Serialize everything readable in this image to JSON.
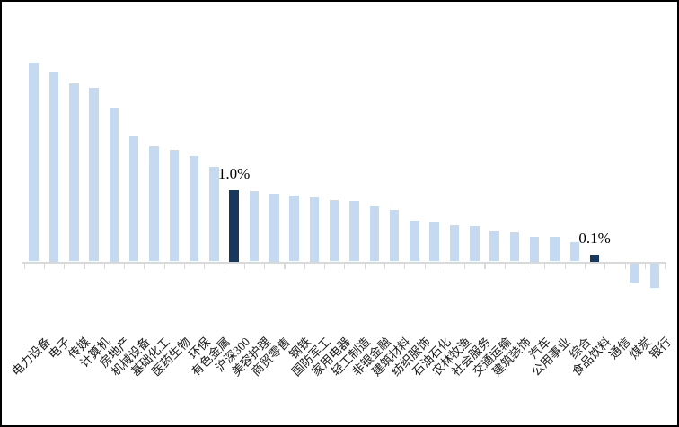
{
  "chart_data": {
    "type": "bar",
    "title": "",
    "xlabel": "",
    "ylabel": "",
    "unit": "%",
    "grid": false,
    "legend": "none",
    "y_axis_labels_visible": false,
    "ylim": [
      -0.5,
      3.0
    ],
    "categories": [
      "电力设备",
      "电子",
      "传媒",
      "计算机",
      "房地产",
      "机械设备",
      "基础化工",
      "医药生物",
      "环保",
      "有色金属",
      "沪深300",
      "美容护理",
      "商贸零售",
      "钢铁",
      "国防军工",
      "家用电器",
      "轻工制造",
      "非银金融",
      "建筑材料",
      "纺织服饰",
      "石油石化",
      "农林牧渔",
      "社会服务",
      "交通运输",
      "建筑装饰",
      "汽车",
      "公用事业",
      "综合",
      "食品饮料",
      "通信",
      "煤炭",
      "银行"
    ],
    "values": [
      2.77,
      2.65,
      2.48,
      2.42,
      2.15,
      1.74,
      1.61,
      1.56,
      1.47,
      1.32,
      1.0,
      0.98,
      0.95,
      0.92,
      0.9,
      0.86,
      0.84,
      0.77,
      0.72,
      0.57,
      0.54,
      0.51,
      0.49,
      0.42,
      0.41,
      0.35,
      0.34,
      0.27,
      0.1,
      0.0,
      -0.27,
      -0.34
    ],
    "highlight_categories": [
      "沪深300",
      "食品饮料"
    ],
    "data_labels": [
      {
        "category": "沪深300",
        "text": "1.0%"
      },
      {
        "category": "食品饮料",
        "text": "0.1%"
      }
    ],
    "colors": {
      "bar": "#C5D9F1",
      "highlight_bar": "#17375E",
      "axis_line": "#D9D9D9",
      "data_label_text": "#000000",
      "category_label_text": "#1A1A1A",
      "background": "#FFFFFF",
      "frame_border": "#000000"
    }
  }
}
